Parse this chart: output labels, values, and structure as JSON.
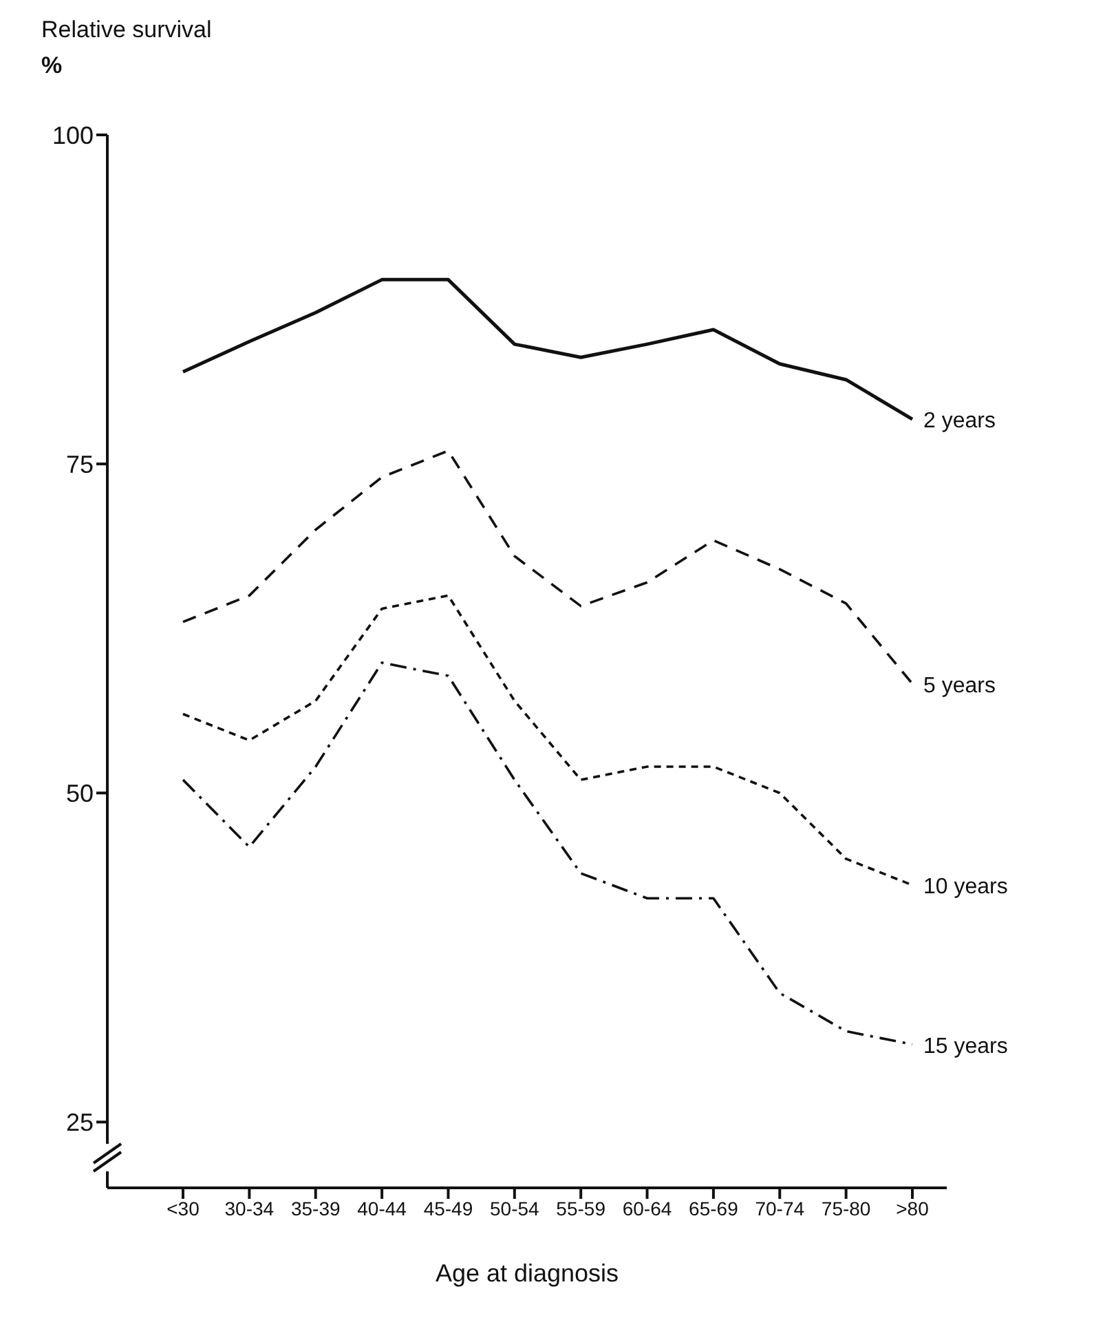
{
  "chart_data": {
    "type": "line",
    "ylabel": "Relative survival\n%",
    "xlabel": "Age at diagnosis",
    "categories": [
      "<30",
      "30-34",
      "35-39",
      "40-44",
      "45-49",
      "50-54",
      "55-59",
      "60-64",
      "65-69",
      "70-74",
      "75-80",
      ">80"
    ],
    "series": [
      {
        "name": "2 years",
        "color": "#111111",
        "line_style": "solid",
        "values": [
          82,
          84.3,
          86.5,
          89,
          89,
          84.1,
          83.1,
          84.1,
          85.2,
          82.6,
          81.4,
          78.4
        ]
      },
      {
        "name": "5 years",
        "color": "#111111",
        "line_style": "dashed",
        "values": [
          63,
          65,
          70,
          74,
          76,
          68,
          64.2,
          66,
          69.2,
          67,
          64.4,
          58.3
        ]
      },
      {
        "name": "10 years",
        "color": "#111111",
        "line_style": "dotted",
        "values": [
          56,
          54,
          57,
          64,
          65,
          57,
          51,
          52,
          52,
          50,
          45,
          43
        ]
      },
      {
        "name": "15 years",
        "color": "#111111",
        "line_style": "dashdot",
        "values": [
          51,
          45.9,
          52,
          59.9,
          58.9,
          51,
          43.9,
          42,
          42,
          34.8,
          31.9,
          30.9
        ]
      }
    ],
    "ylim": [
      20,
      100
    ],
    "yticks": [
      25,
      50,
      75,
      100
    ],
    "grid": false,
    "legend": false,
    "marker": "none"
  }
}
